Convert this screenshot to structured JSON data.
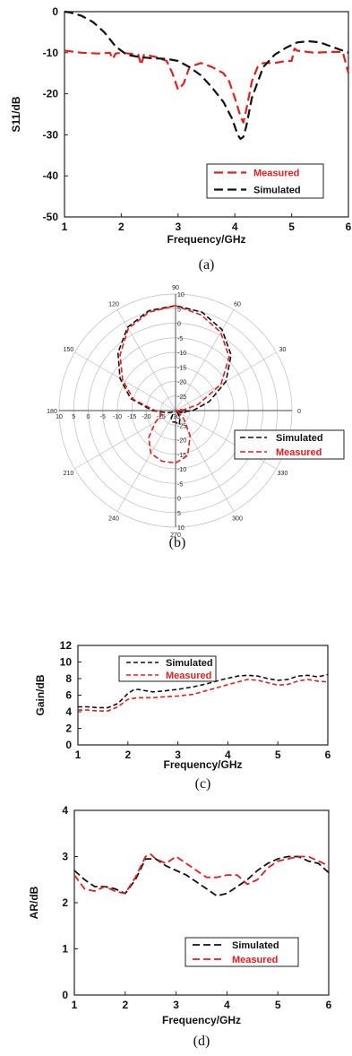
{
  "chart_data": [
    {
      "type": "line",
      "caption": "(a)",
      "xlabel": "Frequency/GHz",
      "ylabel": "S11/dB",
      "xlim": [
        1,
        6
      ],
      "ylim": [
        -50,
        0
      ],
      "xticks": [
        "1",
        "2",
        "3",
        "4",
        "5",
        "6"
      ],
      "yticks": [
        "0",
        "-10",
        "-20",
        "-30",
        "-40",
        "-50"
      ],
      "grid": false,
      "legend": "bottom-right",
      "series": [
        {
          "name": "Measured",
          "color": "#e02020",
          "x": [
            1.0,
            1.3,
            1.6,
            1.8,
            1.85,
            1.9,
            2.0,
            2.2,
            2.3,
            2.35,
            2.4,
            2.6,
            2.8,
            2.9,
            3.0,
            3.1,
            3.2,
            3.4,
            3.6,
            3.8,
            3.9,
            4.0,
            4.1,
            4.15,
            4.2,
            4.3,
            4.4,
            4.5,
            4.7,
            4.9,
            5.0,
            5.05,
            5.1,
            5.4,
            5.7,
            5.9,
            6.0
          ],
          "y": [
            -9.5,
            -10.0,
            -10.2,
            -10.0,
            -11.5,
            -10.2,
            -10.0,
            -10.3,
            -10.5,
            -13.0,
            -10.5,
            -11.0,
            -12.0,
            -15.0,
            -19.0,
            -17.5,
            -13.5,
            -12.5,
            -13.5,
            -15.0,
            -17.0,
            -21.0,
            -25.5,
            -27.0,
            -24.0,
            -17.0,
            -13.5,
            -12.5,
            -12.5,
            -12.0,
            -12.0,
            -9.0,
            -9.5,
            -10.0,
            -9.8,
            -9.8,
            -15.0
          ]
        },
        {
          "name": "Simulated",
          "color": "#111111",
          "x": [
            1.0,
            1.1,
            1.3,
            1.5,
            1.7,
            1.9,
            2.1,
            2.3,
            2.5,
            2.8,
            3.0,
            3.2,
            3.4,
            3.6,
            3.8,
            3.95,
            4.05,
            4.1,
            4.15,
            4.2,
            4.3,
            4.5,
            4.7,
            4.9,
            5.1,
            5.3,
            5.5,
            5.7,
            5.9,
            6.0
          ],
          "y": [
            0.0,
            -0.2,
            -1.0,
            -2.5,
            -5.0,
            -8.5,
            -10.5,
            -11.0,
            -11.3,
            -11.5,
            -12.0,
            -13.5,
            -15.5,
            -18.5,
            -22.0,
            -26.0,
            -30.0,
            -31.0,
            -30.5,
            -28.0,
            -21.0,
            -13.5,
            -10.5,
            -8.8,
            -7.5,
            -7.2,
            -7.5,
            -8.5,
            -9.5,
            -10.0
          ]
        }
      ]
    },
    {
      "type": "polar",
      "caption": "(b)",
      "r_range": [
        -30,
        10
      ],
      "radial_ticks": [
        "10",
        "5",
        "0",
        "-5",
        "-10",
        "-15",
        "-20",
        "-25",
        "-30"
      ],
      "angle_labels": [
        "90",
        "60",
        "30",
        "0",
        "330",
        "300",
        "270",
        "240",
        "210",
        "180",
        "150",
        "120"
      ],
      "legend": "right",
      "series": [
        {
          "name": "Simulated",
          "color": "#111111",
          "theta_deg": [
            0,
            15,
            30,
            45,
            60,
            75,
            90,
            105,
            120,
            135,
            150,
            165,
            180,
            195,
            210,
            225,
            240,
            255,
            270,
            285,
            300,
            315,
            330,
            345,
            360
          ],
          "r_db": [
            -24,
            -18,
            -10,
            -3,
            2,
            5,
            6,
            5.5,
            3,
            -2,
            -8,
            -14,
            -22,
            -27,
            -29,
            -29,
            -27,
            -26,
            -26,
            -25,
            -27,
            -29,
            -30,
            -28,
            -24
          ]
        },
        {
          "name": "Measured",
          "color": "#e02020",
          "theta_deg": [
            0,
            15,
            30,
            45,
            60,
            75,
            90,
            105,
            120,
            135,
            150,
            165,
            180,
            195,
            210,
            225,
            240,
            255,
            270,
            285,
            300,
            315,
            330,
            345,
            360
          ],
          "r_db": [
            -28,
            -22,
            -12,
            -4,
            1,
            4,
            6,
            5,
            2.5,
            -3,
            -9,
            -15,
            -23,
            -25,
            -22,
            -17,
            -13,
            -12,
            -12,
            -14,
            -20,
            -26,
            -29,
            -30,
            -28
          ]
        }
      ]
    },
    {
      "type": "line",
      "caption": "(c)",
      "xlabel": "Frequency/GHz",
      "ylabel": "Gain/dB",
      "xlim": [
        1,
        6
      ],
      "ylim": [
        0,
        12
      ],
      "xticks": [
        "1",
        "2",
        "3",
        "4",
        "5",
        "6"
      ],
      "yticks": [
        "0",
        "2",
        "4",
        "6",
        "8",
        "10",
        "12"
      ],
      "grid": false,
      "legend": "top-left",
      "series": [
        {
          "name": "Simulated",
          "color": "#111111",
          "x": [
            1.0,
            1.2,
            1.4,
            1.6,
            1.8,
            2.0,
            2.1,
            2.2,
            2.3,
            2.5,
            2.7,
            3.0,
            3.3,
            3.6,
            3.9,
            4.2,
            4.4,
            4.6,
            4.8,
            5.0,
            5.2,
            5.4,
            5.6,
            5.8,
            6.0
          ],
          "y": [
            4.6,
            4.6,
            4.5,
            4.5,
            5.0,
            6.2,
            6.6,
            6.7,
            6.6,
            6.4,
            6.5,
            6.7,
            7.0,
            7.4,
            7.9,
            8.3,
            8.4,
            8.3,
            8.0,
            7.8,
            7.9,
            8.3,
            8.4,
            8.2,
            8.5
          ]
        },
        {
          "name": "Measured",
          "color": "#e02020",
          "x": [
            1.0,
            1.2,
            1.4,
            1.6,
            1.8,
            2.0,
            2.1,
            2.2,
            2.3,
            2.5,
            2.7,
            3.0,
            3.3,
            3.6,
            3.9,
            4.2,
            4.4,
            4.6,
            4.8,
            5.0,
            5.2,
            5.4,
            5.6,
            5.8,
            6.0
          ],
          "y": [
            4.2,
            4.2,
            4.1,
            4.1,
            4.6,
            5.5,
            5.6,
            5.7,
            5.7,
            5.7,
            5.8,
            5.9,
            6.1,
            6.6,
            7.1,
            7.6,
            7.9,
            7.8,
            7.5,
            7.2,
            7.3,
            7.7,
            7.9,
            7.7,
            7.6
          ]
        }
      ]
    },
    {
      "type": "line",
      "caption": "(d)",
      "xlabel": "Frequency/GHz",
      "ylabel": "AR/dB",
      "xlim": [
        1,
        6
      ],
      "ylim": [
        0,
        4
      ],
      "xticks": [
        "1",
        "2",
        "3",
        "4",
        "5",
        "6"
      ],
      "yticks": [
        "0",
        "1",
        "2",
        "3",
        "4"
      ],
      "grid": false,
      "legend": "bottom-right",
      "series": [
        {
          "name": "Simulated",
          "color": "#111111",
          "x": [
            1.0,
            1.2,
            1.4,
            1.6,
            1.8,
            2.0,
            2.2,
            2.4,
            2.6,
            2.8,
            3.0,
            3.2,
            3.4,
            3.6,
            3.8,
            4.0,
            4.2,
            4.4,
            4.6,
            4.8,
            5.0,
            5.2,
            5.4,
            5.6,
            5.8,
            6.0
          ],
          "y": [
            2.7,
            2.5,
            2.35,
            2.35,
            2.3,
            2.2,
            2.5,
            2.95,
            2.95,
            2.8,
            2.7,
            2.6,
            2.45,
            2.3,
            2.15,
            2.2,
            2.35,
            2.5,
            2.7,
            2.85,
            2.95,
            3.0,
            3.0,
            2.9,
            2.85,
            2.65
          ]
        },
        {
          "name": "Measured",
          "color": "#e02020",
          "x": [
            1.0,
            1.2,
            1.4,
            1.6,
            1.8,
            2.0,
            2.2,
            2.4,
            2.5,
            2.6,
            2.8,
            3.0,
            3.2,
            3.4,
            3.6,
            3.8,
            4.0,
            4.2,
            4.4,
            4.6,
            4.8,
            5.0,
            5.2,
            5.4,
            5.6,
            5.8,
            6.0
          ],
          "y": [
            2.6,
            2.3,
            2.25,
            2.35,
            2.25,
            2.2,
            2.55,
            3.0,
            3.05,
            2.95,
            2.85,
            3.0,
            2.85,
            2.7,
            2.55,
            2.55,
            2.6,
            2.6,
            2.4,
            2.5,
            2.75,
            2.9,
            2.95,
            3.0,
            3.0,
            2.9,
            2.8
          ]
        }
      ]
    }
  ]
}
